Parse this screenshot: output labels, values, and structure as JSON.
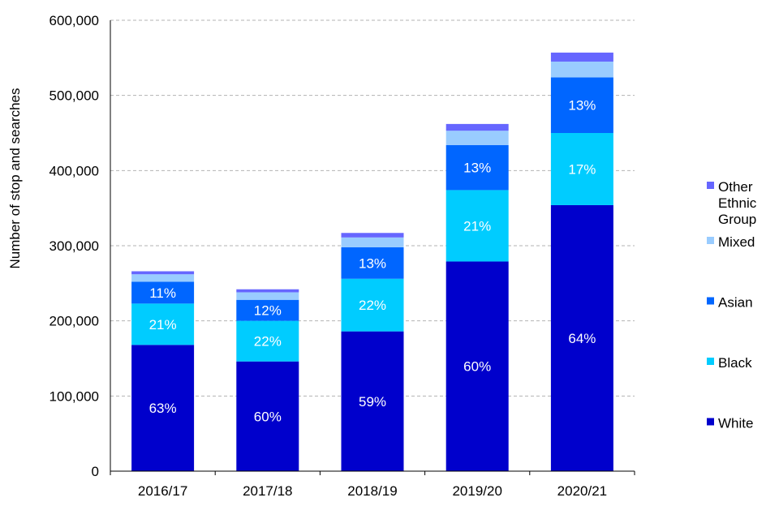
{
  "chart_data": {
    "type": "bar",
    "stacked": true,
    "title": "",
    "xlabel": "",
    "ylabel": "Number of stop and searches",
    "ylim": [
      0,
      600000
    ],
    "yticks": [
      0,
      100000,
      200000,
      300000,
      400000,
      500000,
      600000
    ],
    "ytick_labels": [
      "0",
      "100,000",
      "200,000",
      "300,000",
      "400,000",
      "500,000",
      "600,000"
    ],
    "grid": "horizontal dashed",
    "legend_position": "right",
    "categories": [
      "2016/17",
      "2017/18",
      "2018/19",
      "2019/20",
      "2020/21"
    ],
    "series": [
      {
        "name": "White",
        "color": "#0000CC",
        "values": [
          168000,
          146000,
          186000,
          279000,
          354000
        ],
        "labels": [
          "63%",
          "60%",
          "59%",
          "60%",
          "64%"
        ]
      },
      {
        "name": "Black",
        "color": "#00CCFF",
        "values": [
          55000,
          54000,
          70000,
          95000,
          96000
        ],
        "labels": [
          "21%",
          "22%",
          "22%",
          "21%",
          "17%"
        ]
      },
      {
        "name": "Asian",
        "color": "#0066FF",
        "values": [
          29000,
          28000,
          42000,
          60000,
          74000
        ],
        "labels": [
          "11%",
          "12%",
          "13%",
          "13%",
          "13%"
        ]
      },
      {
        "name": "Mixed",
        "color": "#99CCFF",
        "values": [
          10000,
          10000,
          13000,
          19000,
          21000
        ],
        "labels": [
          "",
          "",
          "",
          "",
          ""
        ]
      },
      {
        "name": "Other Ethnic Group",
        "color": "#6666FF",
        "values": [
          4000,
          4000,
          6000,
          9000,
          12000
        ],
        "labels": [
          "",
          "",
          "",
          "",
          ""
        ]
      }
    ]
  }
}
